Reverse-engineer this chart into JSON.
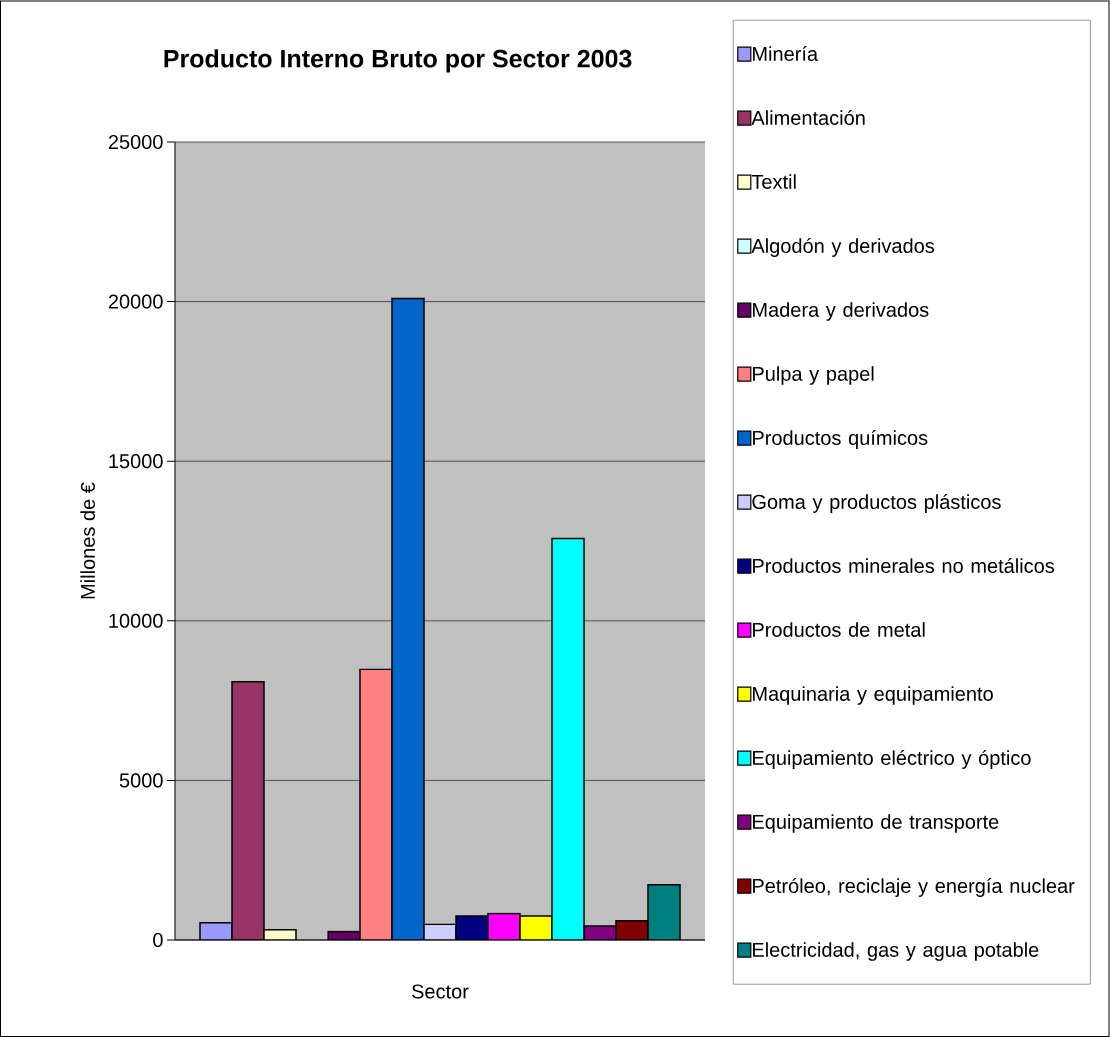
{
  "chart_data": {
    "type": "bar",
    "title": "Producto Interno Bruto por Sector 2003",
    "xlabel": "Sector",
    "ylabel": "Millones de €",
    "categories": [
      null
    ],
    "series": [
      {
        "name": "Minería",
        "color": "#9999ff",
        "values": [
          540
        ]
      },
      {
        "name": "Alimentación",
        "color": "#993366",
        "values": [
          8090
        ]
      },
      {
        "name": "Textil",
        "color": "#ffffcc",
        "values": [
          320
        ]
      },
      {
        "name": "Algodón y derivados",
        "color": "#ccffff",
        "values": [
          null
        ]
      },
      {
        "name": "Madera y derivados",
        "color": "#660066",
        "values": [
          270
        ]
      },
      {
        "name": "Pulpa y papel",
        "color": "#ff8080",
        "values": [
          8480
        ]
      },
      {
        "name": "Productos químicos",
        "color": "#0066cc",
        "values": [
          20100
        ]
      },
      {
        "name": "Goma y productos plásticos",
        "color": "#ccccff",
        "values": [
          490
        ]
      },
      {
        "name": "Productos minerales no metálicos",
        "color": "#000080",
        "values": [
          750
        ]
      },
      {
        "name": "Productos de metal",
        "color": "#ff00ff",
        "values": [
          830
        ]
      },
      {
        "name": "Maquinaria y equipamiento",
        "color": "#ffff00",
        "values": [
          750
        ]
      },
      {
        "name": "Equipamiento eléctrico y óptico",
        "color": "#00ffff",
        "values": [
          12580
        ]
      },
      {
        "name": "Equipamiento de transporte",
        "color": "#800080",
        "values": [
          440
        ]
      },
      {
        "name": "Petróleo, reciclaje y energía nuclear",
        "color": "#800000",
        "values": [
          600
        ]
      },
      {
        "name": "Electricidad, gas y agua potable",
        "color": "#008080",
        "values": [
          1730
        ]
      }
    ],
    "ylim": [
      0,
      25000
    ],
    "yticks": [
      0,
      5000,
      10000,
      15000,
      20000,
      25000
    ],
    "grid": "y",
    "legend": "right"
  }
}
